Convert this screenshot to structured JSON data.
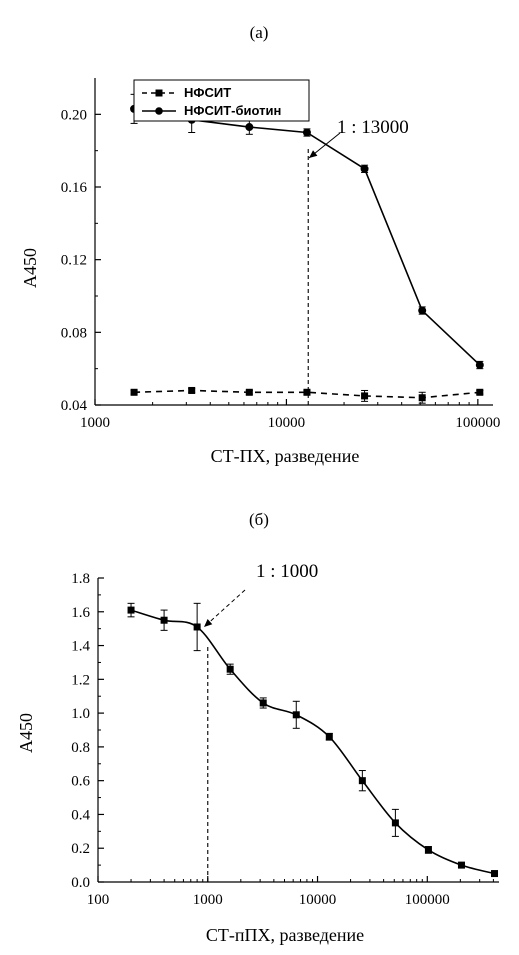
{
  "chart_data": [
    {
      "type": "line",
      "panel_label": "(a)",
      "xlabel": "СТ-ПХ, разведение",
      "ylabel": "A450",
      "xscale": "log",
      "xlim": [
        1000,
        120000
      ],
      "ylim": [
        0.04,
        0.22
      ],
      "xticks": [
        1000,
        10000,
        100000
      ],
      "xtick_labels": [
        "1000",
        "10000",
        "100000"
      ],
      "yticks": [
        0.04,
        0.08,
        0.12,
        0.16,
        0.2
      ],
      "ytick_labels": [
        "0.04",
        "0.08",
        "0.12",
        "0.16",
        "0.20"
      ],
      "legend_position": "top-left",
      "series": [
        {
          "name": "НФСИТ",
          "style": "dashed",
          "marker": "square",
          "color": "#000000",
          "x": [
            1600,
            3200,
            6400,
            12800,
            25600,
            51200,
            102400
          ],
          "y": [
            0.047,
            0.048,
            0.047,
            0.047,
            0.045,
            0.044,
            0.047
          ],
          "err": [
            0.001,
            0.001,
            0.001,
            0.001,
            0.003,
            0.003,
            0.001
          ]
        },
        {
          "name": "НФСИТ-биотин",
          "style": "solid",
          "marker": "circle",
          "color": "#000000",
          "x": [
            1600,
            3200,
            6400,
            12800,
            25600,
            51200,
            102400
          ],
          "y": [
            0.203,
            0.197,
            0.193,
            0.19,
            0.17,
            0.092,
            0.062
          ],
          "err": [
            0.008,
            0.007,
            0.004,
            0.002,
            0.002,
            0.002,
            0.002
          ]
        }
      ],
      "annotations": [
        {
          "text": "1 : 13000",
          "x": 13000
        }
      ]
    },
    {
      "type": "line",
      "panel_label": "(б)",
      "xlabel": "СТ-пПХ, разведение",
      "ylabel": "A450",
      "xscale": "log",
      "xlim": [
        100,
        450000
      ],
      "ylim": [
        0.0,
        1.8
      ],
      "xticks": [
        100,
        1000,
        10000,
        100000
      ],
      "xtick_labels": [
        "100",
        "1000",
        "10000",
        "100000"
      ],
      "yticks": [
        0.0,
        0.2,
        0.4,
        0.6,
        0.8,
        1.0,
        1.2,
        1.4,
        1.6,
        1.8
      ],
      "ytick_labels": [
        "0.0",
        "0.2",
        "0.4",
        "0.6",
        "0.8",
        "1.0",
        "1.2",
        "1.4",
        "1.6",
        "1.8"
      ],
      "series": [
        {
          "style": "solid",
          "marker": "square",
          "color": "#000000",
          "x": [
            200,
            400,
            800,
            1600,
            3200,
            6400,
            12800,
            25600,
            51200,
            102400,
            204800,
            409600
          ],
          "y": [
            1.61,
            1.55,
            1.51,
            1.26,
            1.06,
            0.99,
            0.86,
            0.6,
            0.35,
            0.19,
            0.1,
            0.05
          ],
          "err": [
            0.04,
            0.06,
            0.14,
            0.03,
            0.03,
            0.08,
            0.02,
            0.06,
            0.08,
            0.02,
            0.01,
            0.01
          ]
        }
      ],
      "annotations": [
        {
          "text": "1 : 1000",
          "x": 1000
        }
      ]
    }
  ]
}
